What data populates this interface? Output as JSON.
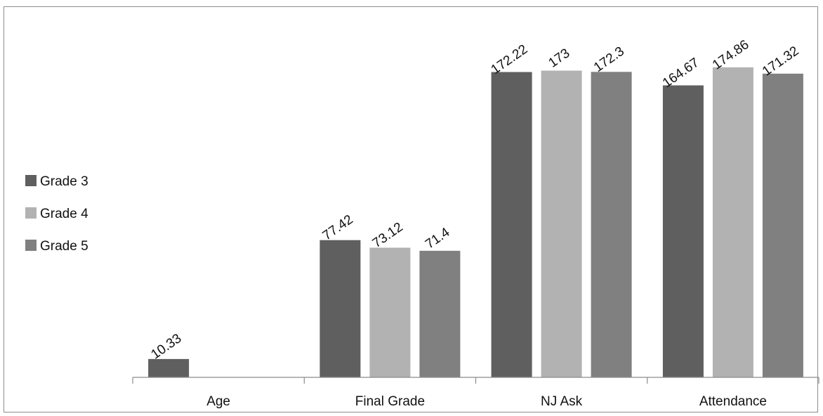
{
  "chart_data": {
    "type": "bar",
    "categories": [
      "Age",
      "Final Grade",
      "NJ Ask",
      "Attendance"
    ],
    "series": [
      {
        "name": "Grade 3",
        "color": "#5f5f5f",
        "values": [
          10.33,
          77.42,
          172.22,
          164.67
        ]
      },
      {
        "name": "Grade 4",
        "color": "#b2b2b2",
        "values": [
          null,
          73.12,
          173,
          174.86
        ]
      },
      {
        "name": "Grade 5",
        "color": "#808080",
        "values": [
          null,
          71.4,
          172.3,
          171.32
        ]
      }
    ],
    "data_labels": [
      [
        "10.33",
        "77.42",
        "172.22",
        "164.67"
      ],
      [
        null,
        "73.12",
        "173",
        "174.86"
      ],
      [
        null,
        "71.4",
        "172.3",
        "171.32"
      ]
    ],
    "ylim": [
      0,
      180
    ],
    "grid": false,
    "legend_position": "left",
    "title": "",
    "xlabel": "",
    "ylabel": ""
  }
}
